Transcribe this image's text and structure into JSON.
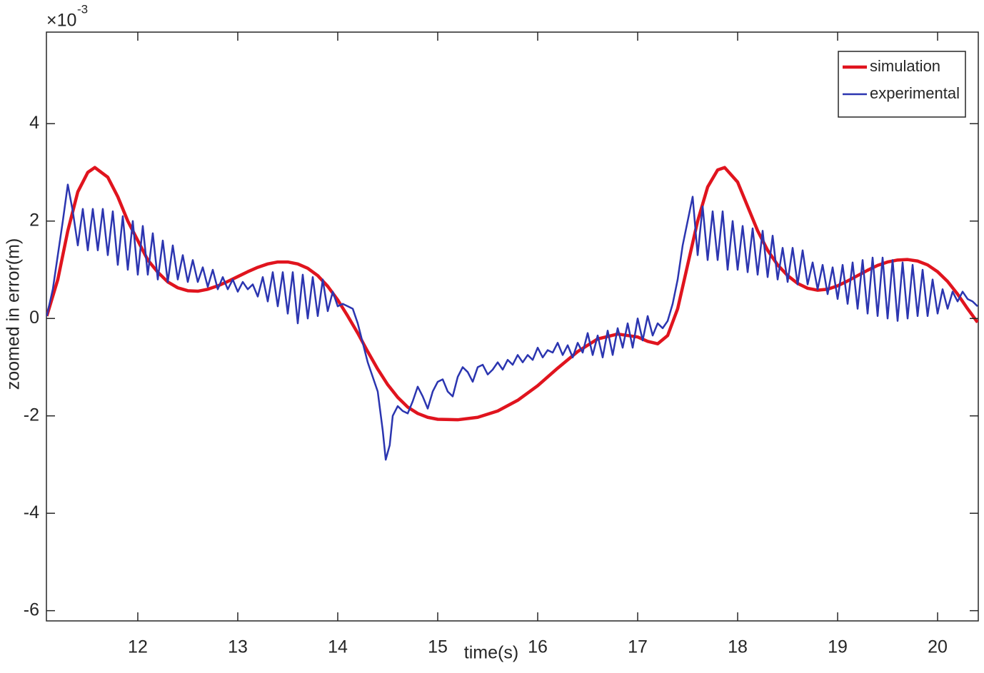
{
  "chart_data": {
    "type": "line",
    "x_label": "time(s)",
    "y_label": "zoomed in error(m)",
    "y_scale_base": "×10",
    "y_scale_exponent": "-3",
    "xlim": [
      11.086,
      20.407
    ],
    "ylim": [
      -6.21,
      5.88
    ],
    "xticks": [
      12,
      13,
      14,
      15,
      16,
      17,
      18,
      19,
      20
    ],
    "yticks": [
      -6,
      -4,
      -2,
      0,
      2,
      4
    ],
    "grid": false,
    "legend_position": "upper-right",
    "series": [
      {
        "name": "simulation",
        "color": "#e0141e",
        "line_width": 4.5,
        "x": [
          11.09,
          11.2,
          11.3,
          11.4,
          11.5,
          11.57,
          11.7,
          11.8,
          11.9,
          12.0,
          12.1,
          12.2,
          12.3,
          12.4,
          12.5,
          12.6,
          12.7,
          12.8,
          12.9,
          13.0,
          13.1,
          13.2,
          13.3,
          13.4,
          13.5,
          13.6,
          13.7,
          13.8,
          13.9,
          14.0,
          14.1,
          14.2,
          14.3,
          14.4,
          14.5,
          14.6,
          14.7,
          14.8,
          14.9,
          15.0,
          15.2,
          15.4,
          15.6,
          15.8,
          16.0,
          16.2,
          16.4,
          16.6,
          16.8,
          17.0,
          17.1,
          17.2,
          17.3,
          17.4,
          17.5,
          17.6,
          17.7,
          17.8,
          17.87,
          18.0,
          18.1,
          18.2,
          18.3,
          18.4,
          18.5,
          18.6,
          18.7,
          18.8,
          18.9,
          19.0,
          19.1,
          19.2,
          19.3,
          19.4,
          19.5,
          19.6,
          19.7,
          19.8,
          19.9,
          20.0,
          20.1,
          20.2,
          20.3,
          20.4
        ],
        "values": [
          0.05,
          0.8,
          1.8,
          2.6,
          3.0,
          3.1,
          2.9,
          2.5,
          2.0,
          1.6,
          1.2,
          0.95,
          0.75,
          0.63,
          0.57,
          0.56,
          0.6,
          0.67,
          0.76,
          0.86,
          0.96,
          1.05,
          1.12,
          1.16,
          1.16,
          1.12,
          1.03,
          0.88,
          0.66,
          0.38,
          0.05,
          -0.3,
          -0.68,
          -1.04,
          -1.36,
          -1.62,
          -1.82,
          -1.95,
          -2.03,
          -2.07,
          -2.08,
          -2.03,
          -1.9,
          -1.68,
          -1.38,
          -1.02,
          -0.68,
          -0.42,
          -0.32,
          -0.38,
          -0.47,
          -0.52,
          -0.35,
          0.2,
          1.1,
          2.0,
          2.7,
          3.05,
          3.1,
          2.8,
          2.3,
          1.8,
          1.4,
          1.1,
          0.88,
          0.72,
          0.62,
          0.58,
          0.6,
          0.67,
          0.77,
          0.88,
          0.99,
          1.09,
          1.16,
          1.2,
          1.21,
          1.18,
          1.1,
          0.96,
          0.76,
          0.5,
          0.2,
          -0.08
        ]
      },
      {
        "name": "experimental",
        "color": "#2b35b0",
        "line_width": 2.5,
        "x": [
          11.09,
          11.15,
          11.2,
          11.25,
          11.3,
          11.35,
          11.4,
          11.45,
          11.5,
          11.55,
          11.6,
          11.65,
          11.7,
          11.75,
          11.8,
          11.85,
          11.9,
          11.95,
          12.0,
          12.05,
          12.1,
          12.15,
          12.2,
          12.25,
          12.3,
          12.35,
          12.4,
          12.45,
          12.5,
          12.55,
          12.6,
          12.65,
          12.7,
          12.75,
          12.8,
          12.85,
          12.9,
          12.95,
          13.0,
          13.05,
          13.1,
          13.15,
          13.2,
          13.25,
          13.3,
          13.35,
          13.4,
          13.45,
          13.5,
          13.55,
          13.6,
          13.65,
          13.7,
          13.75,
          13.8,
          13.85,
          13.9,
          13.95,
          14.0,
          14.05,
          14.1,
          14.15,
          14.2,
          14.25,
          14.3,
          14.35,
          14.4,
          14.45,
          14.48,
          14.52,
          14.55,
          14.6,
          14.65,
          14.7,
          14.75,
          14.8,
          14.85,
          14.9,
          14.95,
          15.0,
          15.05,
          15.1,
          15.15,
          15.2,
          15.25,
          15.3,
          15.35,
          15.4,
          15.45,
          15.5,
          15.55,
          15.6,
          15.65,
          15.7,
          15.75,
          15.8,
          15.85,
          15.9,
          15.95,
          16.0,
          16.05,
          16.1,
          16.15,
          16.2,
          16.25,
          16.3,
          16.35,
          16.4,
          16.45,
          16.5,
          16.55,
          16.6,
          16.65,
          16.7,
          16.75,
          16.8,
          16.85,
          16.9,
          16.95,
          17.0,
          17.05,
          17.1,
          17.15,
          17.2,
          17.25,
          17.3,
          17.35,
          17.4,
          17.45,
          17.5,
          17.55,
          17.6,
          17.65,
          17.7,
          17.75,
          17.8,
          17.85,
          17.9,
          17.95,
          18.0,
          18.05,
          18.1,
          18.15,
          18.2,
          18.25,
          18.3,
          18.35,
          18.4,
          18.45,
          18.5,
          18.55,
          18.6,
          18.65,
          18.7,
          18.75,
          18.8,
          18.85,
          18.9,
          18.95,
          19.0,
          19.05,
          19.1,
          19.15,
          19.2,
          19.25,
          19.3,
          19.35,
          19.4,
          19.45,
          19.5,
          19.55,
          19.6,
          19.65,
          19.7,
          19.75,
          19.8,
          19.85,
          19.9,
          19.95,
          20.0,
          20.05,
          20.1,
          20.15,
          20.2,
          20.25,
          20.3,
          20.35,
          20.4
        ],
        "values": [
          0.05,
          0.6,
          1.3,
          2.0,
          2.75,
          2.2,
          1.5,
          2.25,
          1.4,
          2.25,
          1.4,
          2.25,
          1.3,
          2.2,
          1.1,
          2.1,
          1.0,
          2.0,
          0.9,
          1.9,
          0.9,
          1.75,
          0.8,
          1.6,
          0.75,
          1.5,
          0.8,
          1.3,
          0.75,
          1.2,
          0.75,
          1.05,
          0.65,
          1.0,
          0.6,
          0.85,
          0.6,
          0.8,
          0.55,
          0.75,
          0.6,
          0.7,
          0.45,
          0.85,
          0.35,
          0.95,
          0.25,
          0.95,
          0.1,
          0.95,
          -0.1,
          0.9,
          0.0,
          0.85,
          0.05,
          0.8,
          0.15,
          0.55,
          0.25,
          0.3,
          0.25,
          0.2,
          -0.1,
          -0.5,
          -0.9,
          -1.2,
          -1.5,
          -2.3,
          -2.9,
          -2.6,
          -2.0,
          -1.8,
          -1.9,
          -1.95,
          -1.7,
          -1.4,
          -1.6,
          -1.85,
          -1.5,
          -1.3,
          -1.25,
          -1.5,
          -1.6,
          -1.2,
          -1.0,
          -1.1,
          -1.3,
          -1.0,
          -0.95,
          -1.15,
          -1.05,
          -0.9,
          -1.05,
          -0.85,
          -0.95,
          -0.75,
          -0.9,
          -0.75,
          -0.85,
          -0.6,
          -0.8,
          -0.65,
          -0.7,
          -0.5,
          -0.75,
          -0.55,
          -0.8,
          -0.5,
          -0.7,
          -0.3,
          -0.75,
          -0.35,
          -0.8,
          -0.25,
          -0.75,
          -0.2,
          -0.6,
          -0.1,
          -0.6,
          0.0,
          -0.45,
          0.05,
          -0.35,
          -0.1,
          -0.2,
          -0.05,
          0.3,
          0.8,
          1.5,
          2.0,
          2.5,
          1.3,
          2.3,
          1.2,
          2.2,
          1.2,
          2.2,
          1.0,
          2.0,
          1.0,
          1.9,
          0.95,
          1.85,
          0.9,
          1.8,
          0.85,
          1.7,
          0.8,
          1.45,
          0.75,
          1.45,
          0.7,
          1.4,
          0.7,
          1.15,
          0.6,
          1.1,
          0.5,
          1.05,
          0.4,
          1.1,
          0.3,
          1.15,
          0.2,
          1.2,
          0.1,
          1.25,
          0.05,
          1.25,
          0.0,
          1.2,
          -0.05,
          1.15,
          0.0,
          1.1,
          0.05,
          1.0,
          0.05,
          0.8,
          0.1,
          0.6,
          0.2,
          0.55,
          0.35,
          0.55,
          0.4,
          0.35,
          0.25
        ]
      }
    ]
  }
}
